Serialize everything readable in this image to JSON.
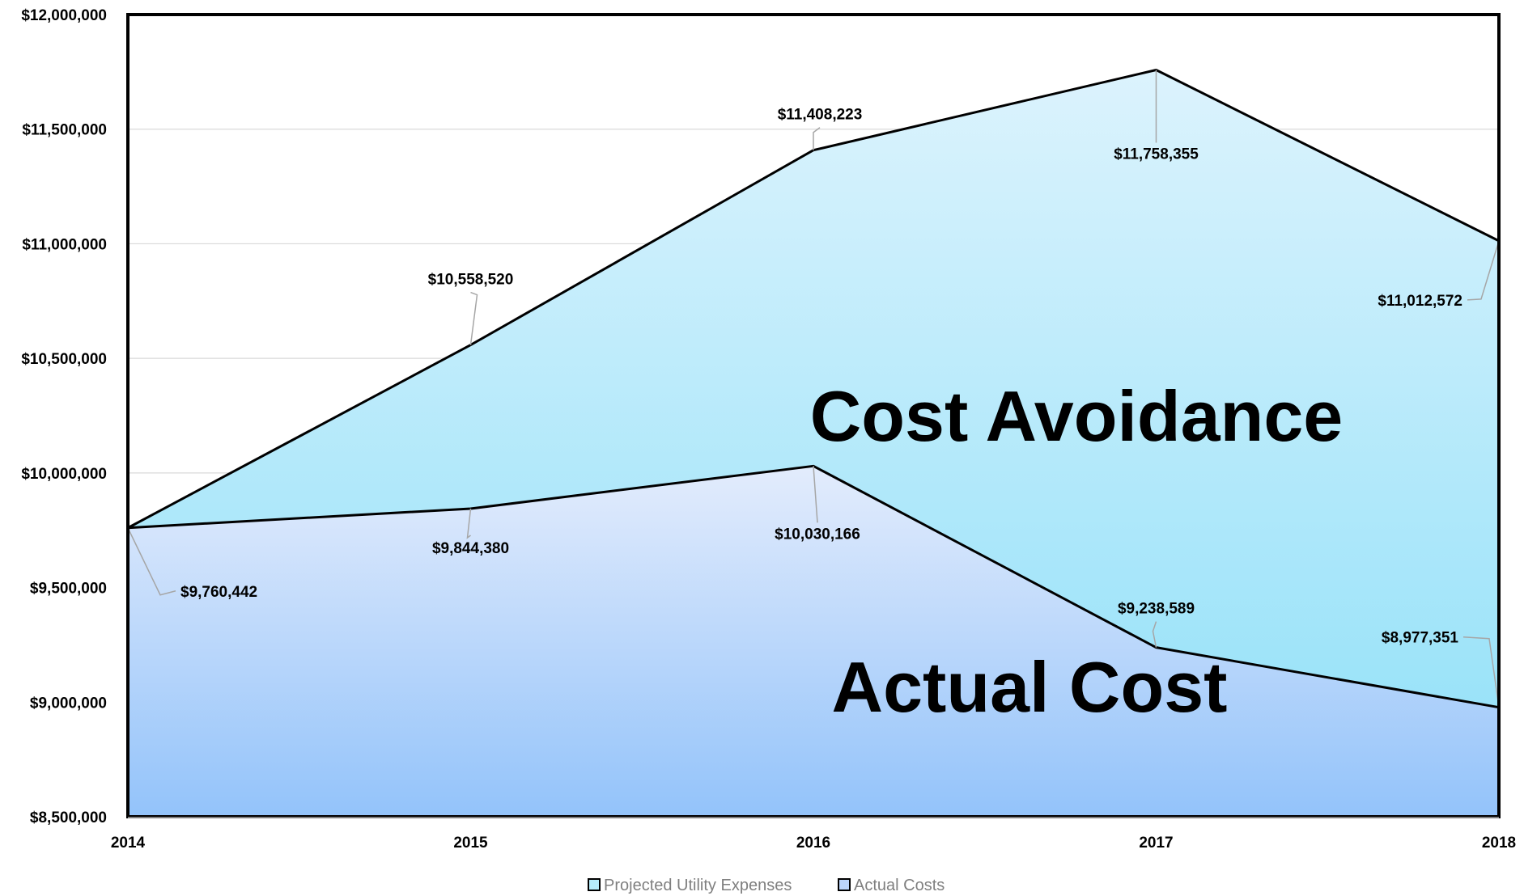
{
  "chart_data": {
    "type": "area",
    "categories": [
      "2014",
      "2015",
      "2016",
      "2017",
      "2018"
    ],
    "series": [
      {
        "name": "Projected Utility Expenses",
        "values": [
          9760442,
          10558520,
          11408223,
          11758355,
          11012572
        ],
        "labels": [
          "",
          "$10,558,520",
          "$11,408,223",
          "$11,758,355",
          "$11,012,572"
        ],
        "color_top": "#dcf3fd",
        "color_bottom": "#8fe0f8"
      },
      {
        "name": "Actual Costs",
        "values": [
          9760442,
          9844380,
          10030166,
          9238589,
          8977351
        ],
        "labels": [
          "$9,760,442",
          "$9,844,380",
          "$10,030,166",
          "$9,238,589",
          "$8,977,351"
        ],
        "color_top": "#e3ecfc",
        "color_bottom": "#93c3fa"
      }
    ],
    "ylim": [
      8500000,
      12000000
    ],
    "ytick_values": [
      8500000,
      9000000,
      9500000,
      10000000,
      10500000,
      11000000,
      11500000,
      12000000
    ],
    "ytick_labels": [
      "$8,500,000",
      "$9,000,000",
      "$9,500,000",
      "$10,000,000",
      "$10,500,000",
      "$11,000,000",
      "$11,500,000",
      "$12,000,000"
    ],
    "annotations": [
      "Cost Avoidance",
      "Actual Cost"
    ],
    "legend_position": "bottom",
    "grid": true,
    "line_color": "#000000",
    "grid_color": "#d9d9d9"
  }
}
